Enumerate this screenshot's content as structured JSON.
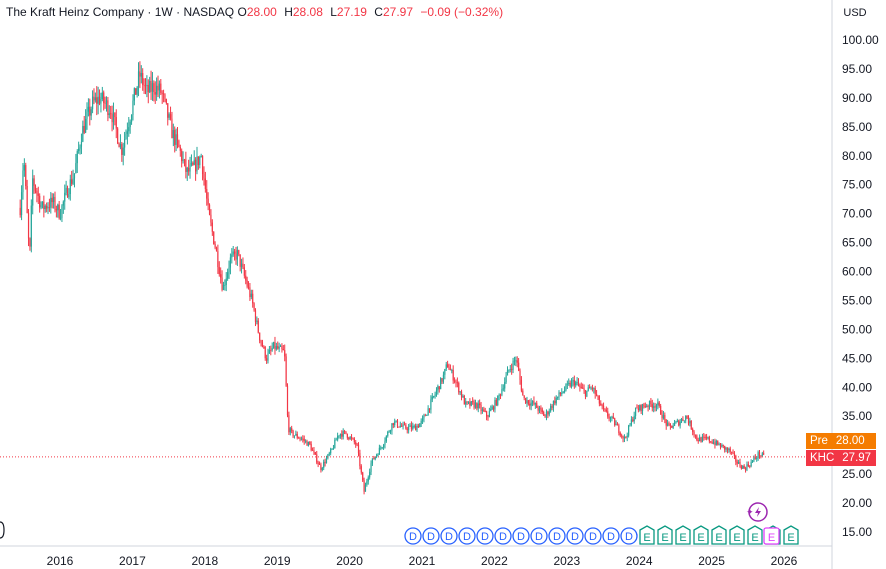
{
  "legend": {
    "symbol": "The Kraft Heinz Company",
    "interval": "1W",
    "exchange": "NASDAQ",
    "o_label": "O",
    "o_value": "28.00",
    "h_label": "H",
    "h_value": "28.08",
    "l_label": "L",
    "l_value": "27.19",
    "c_label": "C",
    "c_value": "27.97",
    "change": "−0.09 (−0.32%)"
  },
  "currency_button": "USD",
  "price_tags": {
    "pre_label": "Pre",
    "pre_value": "28.00",
    "last_label": "KHC",
    "last_value": "27.97"
  },
  "colors": {
    "up": "#26a69a",
    "down": "#f23645",
    "axis_text": "#131722",
    "pre_tag": "#f57c00",
    "last_tag": "#f23645",
    "dividend_marker": "#2962ff",
    "earnings_marker": "#089981",
    "upcoming_earnings": "#e040fb",
    "ai_icon": "#9c27b0"
  },
  "event_markers": {
    "dividend_letter": "D",
    "earnings_letter": "E",
    "sequence": [
      "D",
      "D",
      "D",
      "D",
      "D",
      "D",
      "D",
      "D",
      "D",
      "D",
      "D",
      "D",
      "D",
      "E",
      "E",
      "E",
      "E",
      "E",
      "E",
      "E",
      "E",
      "E"
    ],
    "upcoming": "E"
  },
  "chart_data": {
    "type": "candlestick",
    "interval": "1W",
    "y_axis_ticks": [
      "100.00",
      "95.00",
      "90.00",
      "85.00",
      "80.00",
      "75.00",
      "70.00",
      "65.00",
      "60.00",
      "55.00",
      "50.00",
      "45.00",
      "40.00",
      "35.00",
      "30.00",
      "25.00",
      "20.00",
      "15.00"
    ],
    "x_axis_ticks": [
      "2016",
      "2017",
      "2018",
      "2019",
      "2020",
      "2021",
      "2022",
      "2023",
      "2024",
      "2025",
      "2026"
    ],
    "ylim": [
      13,
      103
    ],
    "x_range": [
      2015.42,
      2026.22
    ],
    "price_path": [
      [
        2015.45,
        71
      ],
      [
        2015.5,
        80
      ],
      [
        2015.58,
        62
      ],
      [
        2015.62,
        76
      ],
      [
        2015.75,
        71
      ],
      [
        2015.9,
        72
      ],
      [
        2016.0,
        70
      ],
      [
        2016.1,
        74
      ],
      [
        2016.2,
        77
      ],
      [
        2016.3,
        84
      ],
      [
        2016.45,
        89
      ],
      [
        2016.55,
        90
      ],
      [
        2016.7,
        88
      ],
      [
        2016.85,
        81
      ],
      [
        2016.95,
        86
      ],
      [
        2017.1,
        94
      ],
      [
        2017.2,
        91
      ],
      [
        2017.3,
        92
      ],
      [
        2017.4,
        91
      ],
      [
        2017.55,
        84
      ],
      [
        2017.65,
        81
      ],
      [
        2017.75,
        77
      ],
      [
        2017.85,
        78
      ],
      [
        2017.95,
        80
      ],
      [
        2018.05,
        70
      ],
      [
        2018.15,
        64
      ],
      [
        2018.25,
        57
      ],
      [
        2018.35,
        62
      ],
      [
        2018.45,
        63
      ],
      [
        2018.55,
        59
      ],
      [
        2018.65,
        55
      ],
      [
        2018.75,
        49
      ],
      [
        2018.85,
        45
      ],
      [
        2018.95,
        47
      ],
      [
        2019.1,
        46
      ],
      [
        2019.15,
        33
      ],
      [
        2019.2,
        32
      ],
      [
        2019.35,
        31
      ],
      [
        2019.45,
        30
      ],
      [
        2019.6,
        26
      ],
      [
        2019.75,
        29
      ],
      [
        2019.85,
        32
      ],
      [
        2019.95,
        32
      ],
      [
        2020.1,
        30
      ],
      [
        2020.2,
        22
      ],
      [
        2020.3,
        27
      ],
      [
        2020.45,
        30
      ],
      [
        2020.6,
        34
      ],
      [
        2020.75,
        33
      ],
      [
        2020.9,
        33
      ],
      [
        2021.0,
        34
      ],
      [
        2021.15,
        38
      ],
      [
        2021.3,
        42
      ],
      [
        2021.35,
        44
      ],
      [
        2021.5,
        40
      ],
      [
        2021.6,
        37
      ],
      [
        2021.75,
        37
      ],
      [
        2021.9,
        35
      ],
      [
        2022.05,
        38
      ],
      [
        2022.2,
        43
      ],
      [
        2022.3,
        45
      ],
      [
        2022.4,
        38
      ],
      [
        2022.55,
        37
      ],
      [
        2022.7,
        35
      ],
      [
        2022.85,
        38
      ],
      [
        2023.0,
        40
      ],
      [
        2023.1,
        41
      ],
      [
        2023.25,
        39
      ],
      [
        2023.35,
        40
      ],
      [
        2023.5,
        36
      ],
      [
        2023.65,
        34
      ],
      [
        2023.8,
        31
      ],
      [
        2023.95,
        36
      ],
      [
        2024.1,
        37
      ],
      [
        2024.25,
        37
      ],
      [
        2024.4,
        33
      ],
      [
        2024.55,
        34
      ],
      [
        2024.65,
        35
      ],
      [
        2024.8,
        31
      ],
      [
        2024.95,
        31
      ],
      [
        2025.1,
        30
      ],
      [
        2025.25,
        29
      ],
      [
        2025.35,
        27
      ],
      [
        2025.45,
        26
      ],
      [
        2025.55,
        27
      ],
      [
        2025.65,
        28.5
      ],
      [
        2025.72,
        27.97
      ]
    ],
    "last_close": 27.97,
    "premarket": 28.0
  }
}
